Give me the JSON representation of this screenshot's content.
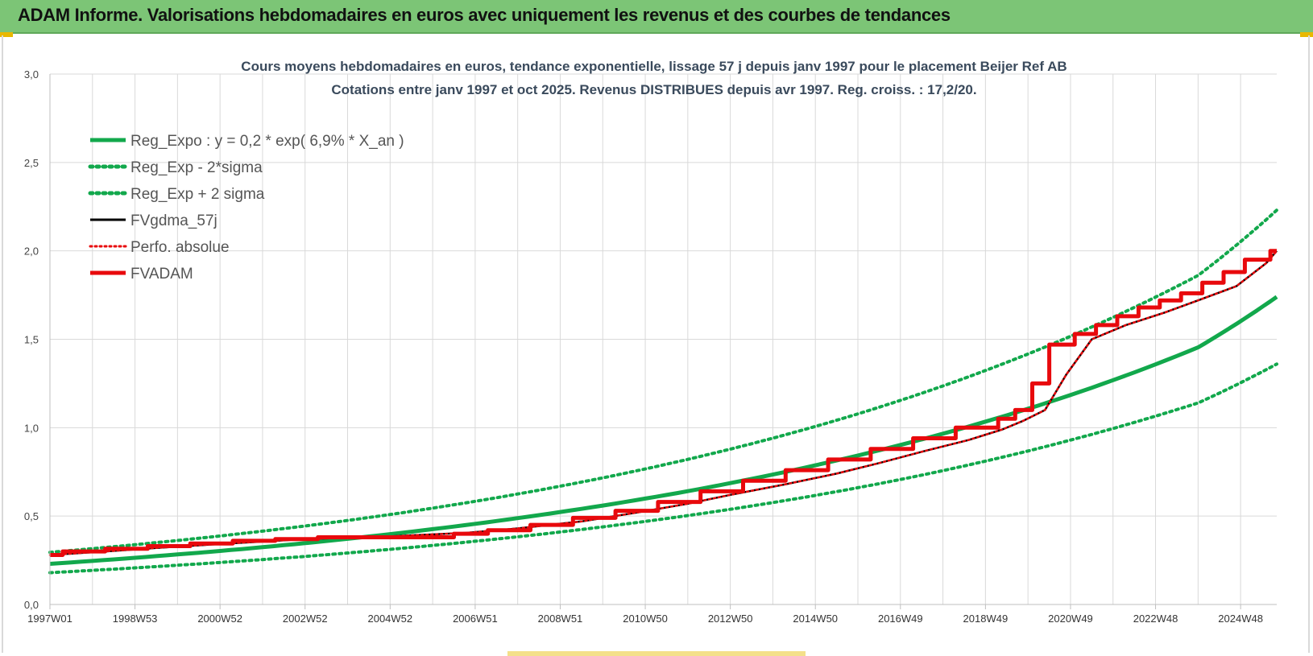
{
  "header": {
    "title": "ADAM Informe. Valorisations hebdomadaires en euros avec uniquement les revenus et des courbes de tendances"
  },
  "colors": {
    "banner": "#7cc576",
    "reg_green": "#12a84c",
    "fvgdma_black": "#000000",
    "fvadam_red": "#e8090c",
    "grid": "#d9d9d9"
  },
  "chart_data": {
    "type": "line",
    "title": "Cours moyens hebdomadaires en euros, tendance exponentielle, lissage 57 j depuis janv 1997 pour le placement Beijer Ref AB",
    "subtitle": "Cotations entre janv 1997 et oct 2025. Revenus DISTRIBUES depuis avr 1997. Reg. croiss. : 17,2/20.",
    "xlabel": "",
    "ylabel": "",
    "ylim": [
      0,
      3
    ],
    "yticks": [
      "0,0",
      "0,5",
      "1,0",
      "1,5",
      "2,0",
      "2,5",
      "3,0"
    ],
    "xlim": [
      1997.0,
      2025.85
    ],
    "xticks": [
      {
        "label": "1997W01",
        "x": 1997.0
      },
      {
        "label": "1998W53",
        "x": 1999.0
      },
      {
        "label": "2000W52",
        "x": 2001.0
      },
      {
        "label": "2002W52",
        "x": 2003.0
      },
      {
        "label": "2004W52",
        "x": 2005.0
      },
      {
        "label": "2006W51",
        "x": 2007.0
      },
      {
        "label": "2008W51",
        "x": 2009.0
      },
      {
        "label": "2010W50",
        "x": 2011.0
      },
      {
        "label": "2012W50",
        "x": 2013.0
      },
      {
        "label": "2014W50",
        "x": 2015.0
      },
      {
        "label": "2016W49",
        "x": 2017.0
      },
      {
        "label": "2018W49",
        "x": 2019.0
      },
      {
        "label": "2020W49",
        "x": 2021.0
      },
      {
        "label": "2022W48",
        "x": 2023.0
      },
      {
        "label": "2024W48",
        "x": 2025.0
      }
    ],
    "grid": true,
    "legend_placement": "top-left",
    "series": [
      {
        "name": "Reg_Expo : y = 0,2 * exp( 6,9% *  X_an )",
        "style": "solid-green",
        "x": [
          1997.0,
          2000.0,
          2003.0,
          2006.0,
          2009.0,
          2012.0,
          2015.0,
          2018.0,
          2021.0,
          2024.0,
          2025.85
        ],
        "y": [
          0.23,
          0.283,
          0.347,
          0.426,
          0.523,
          0.641,
          0.787,
          0.966,
          1.185,
          1.454,
          1.74
        ]
      },
      {
        "name": "Reg_Exp - 2*sigma",
        "style": "dotted-green",
        "x": [
          1997.0,
          2000.0,
          2003.0,
          2006.0,
          2009.0,
          2012.0,
          2015.0,
          2018.0,
          2021.0,
          2024.0,
          2025.85
        ],
        "y": [
          0.18,
          0.222,
          0.272,
          0.334,
          0.41,
          0.503,
          0.617,
          0.757,
          0.93,
          1.14,
          1.36
        ]
      },
      {
        "name": "Reg_Exp + 2 sigma",
        "style": "dotted-green",
        "x": [
          1997.0,
          2000.0,
          2003.0,
          2006.0,
          2009.0,
          2012.0,
          2015.0,
          2018.0,
          2021.0,
          2024.0,
          2025.85
        ],
        "y": [
          0.295,
          0.362,
          0.444,
          0.545,
          0.669,
          0.821,
          1.007,
          1.236,
          1.517,
          1.861,
          2.23
        ]
      },
      {
        "name": "FVgdma_57j",
        "style": "solid-black",
        "x": [
          1997.0,
          1998.3,
          1999.5,
          2001.2,
          2003.0,
          2005.0,
          2006.8,
          2008.0,
          2009.5,
          2010.8,
          2012.0,
          2013.0,
          2014.3,
          2015.5,
          2016.5,
          2017.6,
          2018.6,
          2019.4,
          2019.9,
          2020.4,
          2020.9,
          2021.5,
          2022.3,
          2023.2,
          2024.0,
          2024.9,
          2025.6,
          2025.85
        ],
        "y": [
          0.28,
          0.3,
          0.32,
          0.345,
          0.37,
          0.385,
          0.405,
          0.43,
          0.47,
          0.52,
          0.57,
          0.62,
          0.68,
          0.74,
          0.8,
          0.87,
          0.93,
          0.99,
          1.04,
          1.1,
          1.3,
          1.5,
          1.58,
          1.65,
          1.72,
          1.8,
          1.93,
          2.0
        ]
      },
      {
        "name": "Perfo. absolue",
        "style": "dotted-red",
        "x": [
          1997.0,
          1998.3,
          1999.5,
          2001.2,
          2003.0,
          2005.0,
          2006.8,
          2008.0,
          2009.5,
          2010.8,
          2012.0,
          2013.0,
          2014.3,
          2015.5,
          2016.5,
          2017.6,
          2018.6,
          2019.4,
          2019.9,
          2020.4,
          2020.9,
          2021.5,
          2022.3,
          2023.2,
          2024.0,
          2024.9,
          2025.6,
          2025.85
        ],
        "y": [
          0.28,
          0.3,
          0.32,
          0.345,
          0.37,
          0.385,
          0.405,
          0.43,
          0.47,
          0.52,
          0.57,
          0.62,
          0.68,
          0.74,
          0.8,
          0.87,
          0.93,
          0.99,
          1.04,
          1.1,
          1.3,
          1.5,
          1.58,
          1.65,
          1.72,
          1.8,
          1.93,
          2.0
        ]
      },
      {
        "name": "FVADAM",
        "style": "step-red",
        "x": [
          1997.0,
          1997.3,
          1998.3,
          1999.3,
          2000.3,
          2001.3,
          2002.3,
          2003.3,
          2006.5,
          2007.3,
          2008.3,
          2009.3,
          2010.3,
          2011.3,
          2012.3,
          2013.3,
          2014.3,
          2015.3,
          2016.3,
          2017.3,
          2018.3,
          2019.3,
          2019.7,
          2020.1,
          2020.5,
          2021.1,
          2021.6,
          2022.1,
          2022.6,
          2023.1,
          2023.6,
          2024.1,
          2024.6,
          2025.1,
          2025.7
        ],
        "y": [
          0.28,
          0.3,
          0.315,
          0.33,
          0.345,
          0.36,
          0.37,
          0.38,
          0.4,
          0.42,
          0.45,
          0.49,
          0.53,
          0.58,
          0.64,
          0.7,
          0.76,
          0.82,
          0.88,
          0.94,
          1.0,
          1.05,
          1.1,
          1.25,
          1.47,
          1.53,
          1.58,
          1.63,
          1.68,
          1.72,
          1.76,
          1.82,
          1.88,
          1.95,
          2.0
        ]
      }
    ]
  }
}
